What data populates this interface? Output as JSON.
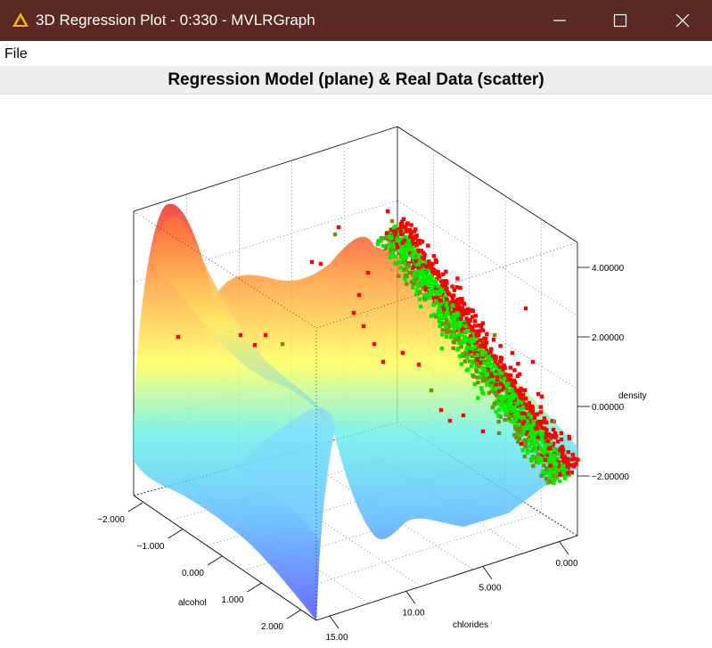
{
  "window": {
    "title": "3D Regression Plot - 0:330 - MVLRGraph",
    "icon": "warning-triangle-icon",
    "controls": [
      "minimize-icon",
      "maximize-icon",
      "close-icon"
    ],
    "titlebar_color": "#5a2a22"
  },
  "menu": {
    "items": [
      {
        "label": "File"
      }
    ]
  },
  "plot": {
    "title": "Regression Model (plane) & Real Data (scatter)",
    "background": "#eeeeee"
  },
  "chart_data": {
    "type": "scatter",
    "title": "Regression Model (plane) & Real Data (scatter)",
    "axes": {
      "x": {
        "label": "alcohol",
        "ticks": [
          {
            "value": -2,
            "label": "−2.000"
          },
          {
            "value": -1,
            "label": "−1.000"
          },
          {
            "value": 0,
            "label": "0.000"
          },
          {
            "value": 1,
            "label": "1.000"
          },
          {
            "value": 2,
            "label": "2.000"
          }
        ]
      },
      "y": {
        "label": "chlorides",
        "ticks": [
          {
            "value": 0,
            "label": "0.000"
          },
          {
            "value": 5,
            "label": "5.000"
          },
          {
            "value": 10,
            "label": "10.00"
          },
          {
            "value": 15,
            "label": "15.00"
          }
        ]
      },
      "z": {
        "label": "density",
        "ticks": [
          {
            "value": -2,
            "label": "−2.00000"
          },
          {
            "value": 0,
            "label": "0.00000"
          },
          {
            "value": 2,
            "label": "2.00000"
          },
          {
            "value": 4,
            "label": "4.00000"
          }
        ]
      }
    },
    "surface": {
      "name": "Regression Model (plane)",
      "colormap": [
        "#4848ff",
        "#44ddff",
        "#ffff44",
        "#ff2222"
      ]
    },
    "scatter": {
      "name": "Real Data (scatter)",
      "marker": "square",
      "point_count_approx": 2500,
      "colors": {
        "above": "#ff0000",
        "near": "#00ee00",
        "below": "#7a8a10"
      }
    },
    "grid": true,
    "box": true
  }
}
